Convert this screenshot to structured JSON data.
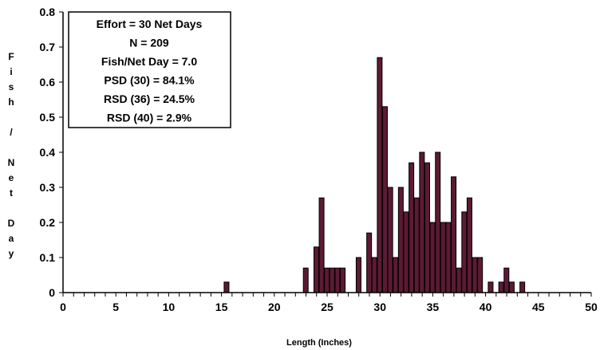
{
  "chart_data": {
    "type": "bar",
    "xlabel": "Length (Inches)",
    "ylabel": "Fish / Net Day",
    "xlim": [
      0,
      50
    ],
    "ylim": [
      0,
      0.8
    ],
    "x_ticks": [
      "0",
      "5",
      "10",
      "15",
      "20",
      "25",
      "30",
      "35",
      "40",
      "45",
      "50"
    ],
    "y_ticks": [
      "0",
      "0.1",
      "0.2",
      "0.3",
      "0.4",
      "0.5",
      "0.6",
      "0.7",
      "0.8"
    ],
    "grid": false,
    "bar_color": "#5c1a33",
    "bar_edge_color": "#000000",
    "stats_box": [
      "Effort = 30 Net Days",
      "N = 209",
      "Fish/Net Day = 7.0",
      "PSD (30) = 84.1%",
      "RSD (36) = 24.5%",
      "RSD (40) = 2.9%"
    ],
    "points": [
      {
        "x": 15.5,
        "y": 0.03
      },
      {
        "x": 23.0,
        "y": 0.07
      },
      {
        "x": 24.0,
        "y": 0.13
      },
      {
        "x": 24.5,
        "y": 0.27
      },
      {
        "x": 25.0,
        "y": 0.07
      },
      {
        "x": 25.5,
        "y": 0.07
      },
      {
        "x": 26.0,
        "y": 0.07
      },
      {
        "x": 26.5,
        "y": 0.07
      },
      {
        "x": 28.0,
        "y": 0.1
      },
      {
        "x": 29.0,
        "y": 0.17
      },
      {
        "x": 29.5,
        "y": 0.1
      },
      {
        "x": 30.0,
        "y": 0.67
      },
      {
        "x": 30.5,
        "y": 0.53
      },
      {
        "x": 31.0,
        "y": 0.3
      },
      {
        "x": 31.5,
        "y": 0.1
      },
      {
        "x": 32.0,
        "y": 0.3
      },
      {
        "x": 32.5,
        "y": 0.23
      },
      {
        "x": 33.0,
        "y": 0.37
      },
      {
        "x": 33.5,
        "y": 0.27
      },
      {
        "x": 34.0,
        "y": 0.4
      },
      {
        "x": 34.5,
        "y": 0.37
      },
      {
        "x": 35.0,
        "y": 0.2
      },
      {
        "x": 35.5,
        "y": 0.4
      },
      {
        "x": 36.0,
        "y": 0.2
      },
      {
        "x": 36.5,
        "y": 0.2
      },
      {
        "x": 37.0,
        "y": 0.33
      },
      {
        "x": 37.5,
        "y": 0.07
      },
      {
        "x": 38.0,
        "y": 0.23
      },
      {
        "x": 38.5,
        "y": 0.27
      },
      {
        "x": 39.0,
        "y": 0.1
      },
      {
        "x": 39.5,
        "y": 0.1
      },
      {
        "x": 40.5,
        "y": 0.03
      },
      {
        "x": 41.5,
        "y": 0.03
      },
      {
        "x": 42.0,
        "y": 0.07
      },
      {
        "x": 42.5,
        "y": 0.03
      },
      {
        "x": 43.5,
        "y": 0.03
      }
    ]
  }
}
